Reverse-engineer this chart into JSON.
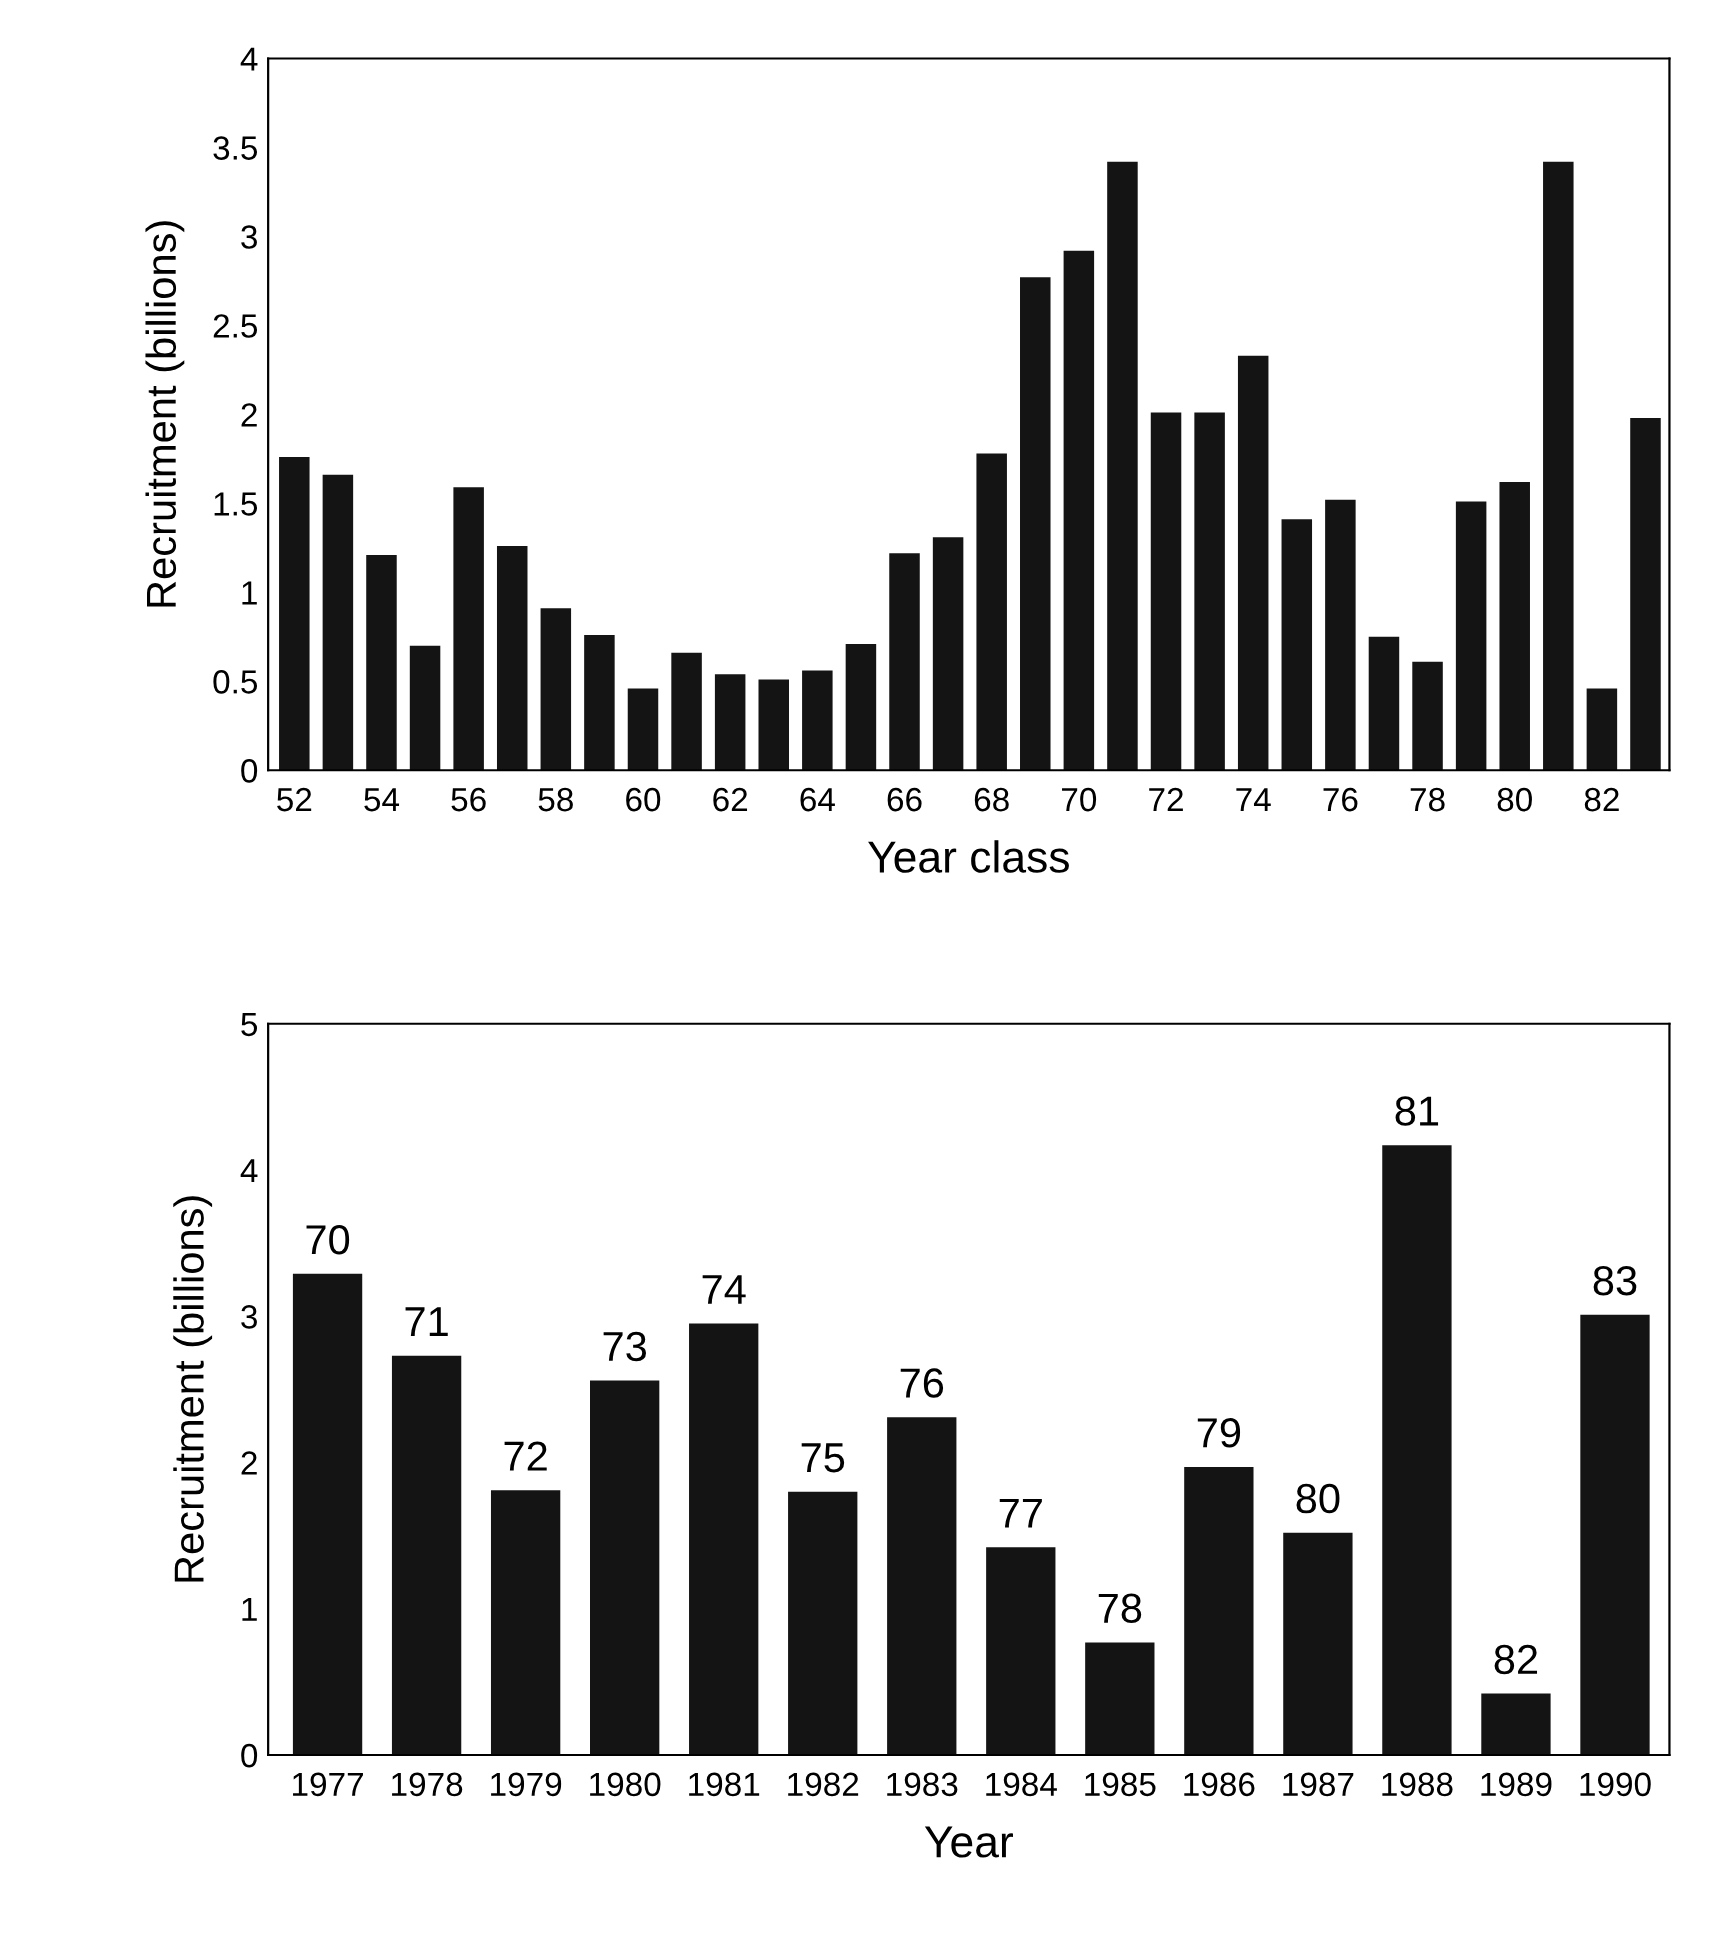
{
  "chart_data": [
    {
      "type": "bar",
      "xlabel": "Year class",
      "ylabel": "Recruitment (billions)",
      "categories": [
        "52",
        null,
        "54",
        null,
        "56",
        null,
        "58",
        null,
        "60",
        null,
        "62",
        null,
        "64",
        null,
        "66",
        null,
        "68",
        null,
        "70",
        null,
        "72",
        null,
        "74",
        null,
        "76",
        null,
        "78",
        null,
        "80",
        null,
        "82",
        null
      ],
      "values": [
        1.76,
        1.66,
        1.21,
        0.7,
        1.59,
        1.26,
        0.91,
        0.76,
        0.46,
        0.66,
        0.54,
        0.51,
        0.56,
        0.71,
        1.22,
        1.31,
        1.78,
        2.77,
        2.92,
        3.42,
        2.01,
        2.01,
        2.33,
        1.41,
        1.52,
        0.75,
        0.61,
        1.51,
        1.62,
        3.42,
        0.46,
        1.98
      ],
      "color": "#141414",
      "ylim": [
        0,
        4
      ],
      "yticks": [
        0,
        0.5,
        1,
        1.5,
        2,
        2.5,
        3,
        3.5,
        4
      ],
      "grid": false,
      "legend": false
    },
    {
      "type": "bar",
      "xlabel": "Year",
      "ylabel": "Recruitment (billions)",
      "categories": [
        "1977",
        "1978",
        "1979",
        "1980",
        "1981",
        "1982",
        "1983",
        "1984",
        "1985",
        "1986",
        "1987",
        "1988",
        "1989",
        "1990"
      ],
      "values": [
        3.29,
        2.73,
        1.81,
        2.56,
        2.95,
        1.8,
        2.31,
        1.42,
        0.77,
        1.97,
        1.52,
        4.17,
        0.42,
        3.01
      ],
      "color": "#141414",
      "ylim": [
        0,
        5
      ],
      "yticks": [
        0,
        1,
        2,
        3,
        4,
        5
      ],
      "grid": false,
      "legend": false,
      "annotations": [
        {
          "text": "70",
          "x": "1977",
          "y": 3.29
        },
        {
          "text": "71",
          "x": "1978",
          "y": 2.73
        },
        {
          "text": "72",
          "x": "1979",
          "y": 1.81
        },
        {
          "text": "73",
          "x": "1980",
          "y": 2.56
        },
        {
          "text": "74",
          "x": "1981",
          "y": 2.95
        },
        {
          "text": "75",
          "x": "1982",
          "y": 1.8
        },
        {
          "text": "76",
          "x": "1983",
          "y": 2.31
        },
        {
          "text": "77",
          "x": "1984",
          "y": 1.42
        },
        {
          "text": "78",
          "x": "1985",
          "y": 0.77
        },
        {
          "text": "79",
          "x": "1986",
          "y": 1.97
        },
        {
          "text": "80",
          "x": "1987",
          "y": 1.52
        },
        {
          "text": "81",
          "x": "1988",
          "y": 4.17
        },
        {
          "text": "82",
          "x": "1989",
          "y": 0.42
        },
        {
          "text": "83",
          "x": "1990",
          "y": 3.01
        }
      ]
    }
  ]
}
